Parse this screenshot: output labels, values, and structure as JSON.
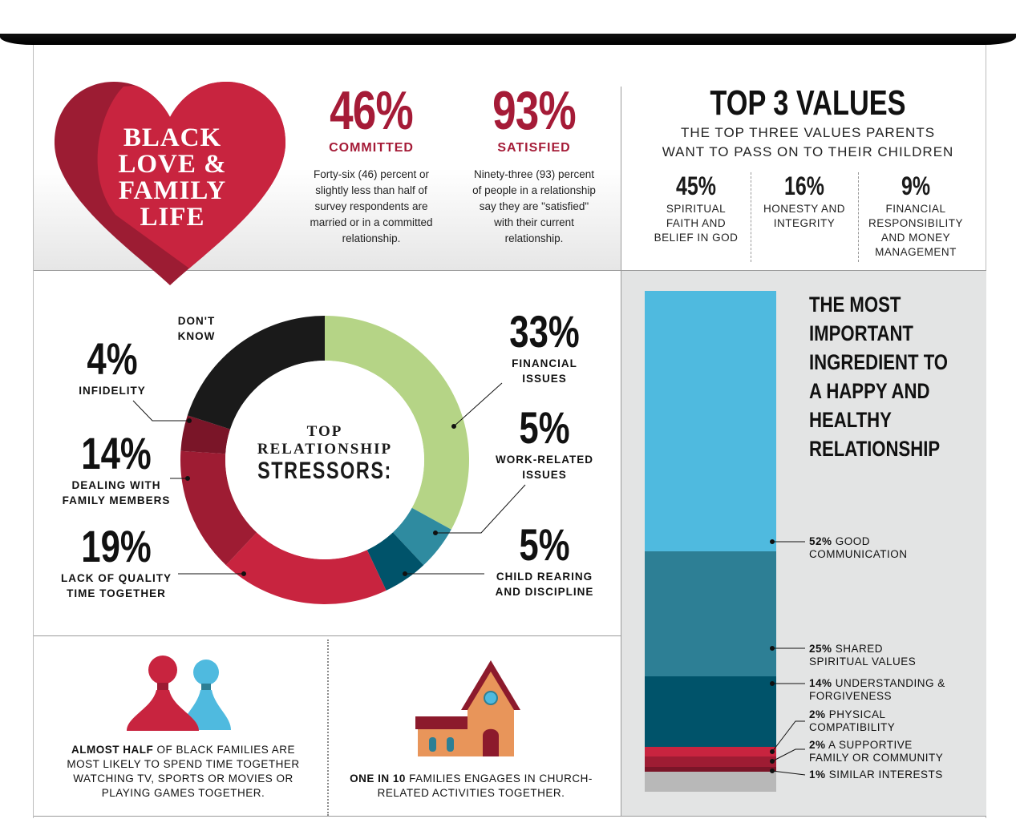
{
  "heart": {
    "title_lines": [
      "BLACK",
      "LOVE &",
      "FAMILY",
      "LIFE"
    ],
    "colors": {
      "light": "#c8243f",
      "dark": "#9c1c33"
    }
  },
  "stats": [
    {
      "value": "46%",
      "label": "COMMITTED",
      "text_lines": [
        "Forty-six (46) percent or",
        "slightly less than half of",
        "survey respondents are",
        "married or in a committed",
        "relationship."
      ]
    },
    {
      "value": "93%",
      "label": "SATISFIED",
      "text_lines": [
        "Ninety-three (93) percent",
        "of people in a relationship",
        "say they are \"satisfied\"",
        "with their current",
        "relationship."
      ]
    }
  ],
  "top_values": {
    "title": "TOP 3 VALUES",
    "subtitle_lines": [
      "THE TOP THREE VALUES PARENTS",
      "WANT TO PASS ON TO THEIR CHILDREN"
    ],
    "items": [
      {
        "pct": "45%",
        "label_lines": [
          "SPIRITUAL",
          "FAITH AND",
          "BELIEF IN GOD"
        ]
      },
      {
        "pct": "16%",
        "label_lines": [
          "HONESTY AND",
          "INTEGRITY"
        ]
      },
      {
        "pct": "9%",
        "label_lines": [
          "FINANCIAL",
          "RESPONSIBILITY",
          "AND MONEY",
          "MANAGEMENT"
        ]
      }
    ]
  },
  "stressors": {
    "center_lines": [
      "TOP",
      "RELATIONSHIP",
      "STRESSORS:"
    ],
    "labels": {
      "dont_know": [
        "DON'T",
        "KNOW"
      ],
      "infidelity": {
        "pct": "4%",
        "lines": [
          "INFIDELITY"
        ]
      },
      "family": {
        "pct": "14%",
        "lines": [
          "DEALING WITH",
          "FAMILY MEMBERS"
        ]
      },
      "time": {
        "pct": "19%",
        "lines": [
          "LACK OF QUALITY",
          "TIME TOGETHER"
        ]
      },
      "financial": {
        "pct": "33%",
        "lines": [
          "FINANCIAL",
          "ISSUES"
        ]
      },
      "work": {
        "pct": "5%",
        "lines": [
          "WORK-RELATED",
          "ISSUES"
        ]
      },
      "child": {
        "pct": "5%",
        "lines": [
          "CHILD REARING",
          "AND DISCIPLINE"
        ]
      }
    }
  },
  "chart_data": [
    {
      "type": "pie",
      "title": "TOP RELATIONSHIP STRESSORS:",
      "series": [
        {
          "name": "FINANCIAL ISSUES",
          "value": 33,
          "color": "#b5d486"
        },
        {
          "name": "WORK-RELATED ISSUES",
          "value": 5,
          "color": "#2f8ba0"
        },
        {
          "name": "CHILD REARING AND DISCIPLINE",
          "value": 5,
          "color": "#00536a"
        },
        {
          "name": "LACK OF QUALITY TIME TOGETHER",
          "value": 19,
          "color": "#c8243f"
        },
        {
          "name": "DEALING WITH FAMILY MEMBERS",
          "value": 14,
          "color": "#9e1c33"
        },
        {
          "name": "INFIDELITY",
          "value": 4,
          "color": "#7a1528"
        },
        {
          "name": "DON'T KNOW",
          "value": 20,
          "color": "#1a1a1a"
        }
      ]
    },
    {
      "type": "bar",
      "title": "THE MOST IMPORTANT INGREDIENT TO A HAPPY AND HEALTHY RELATIONSHIP",
      "series": [
        {
          "pct": "52%",
          "name": "GOOD COMMUNICATION",
          "value": 52,
          "color": "#4fbadf"
        },
        {
          "pct": "25%",
          "name": "SHARED SPIRITUAL VALUES",
          "value": 25,
          "color": "#2d7f95"
        },
        {
          "pct": "14%",
          "name": "UNDERSTANDING & FORGIVENESS",
          "value": 14,
          "color": "#00536a"
        },
        {
          "pct": "2%",
          "name": "PHYSICAL COMPATIBILITY",
          "value": 2,
          "color": "#c8243f"
        },
        {
          "pct": "2%",
          "name": "A SUPPORTIVE FAMILY OR COMMUNITY",
          "value": 2,
          "color": "#9e1c33"
        },
        {
          "pct": "1%",
          "name": "SIMILAR INTERESTS",
          "value": 1,
          "color": "#7a1528"
        },
        {
          "value": 4,
          "color": "#b8b8b8"
        }
      ]
    }
  ],
  "ingredient": {
    "title_lines": [
      "THE MOST",
      "IMPORTANT",
      "INGREDIENT TO",
      "A HAPPY AND",
      "HEALTHY",
      "RELATIONSHIP"
    ],
    "labels": [
      {
        "pct": "52%",
        "lines": [
          "GOOD",
          "COMMUNICATION"
        ]
      },
      {
        "pct": "25%",
        "lines": [
          "SHARED",
          "SPIRITUAL VALUES"
        ]
      },
      {
        "pct": "14%",
        "lines": [
          "UNDERSTANDING &",
          "FORGIVENESS"
        ]
      },
      {
        "pct": "2%",
        "lines": [
          "PHYSICAL",
          "COMPATIBILITY"
        ]
      },
      {
        "pct": "2%",
        "lines": [
          "A SUPPORTIVE",
          "FAMILY OR COMMUNITY"
        ]
      },
      {
        "pct": "1%",
        "lines": [
          "SIMILAR INTERESTS"
        ]
      }
    ]
  },
  "bottom": {
    "games": {
      "bold": "ALMOST HALF",
      "lines": [
        " OF BLACK FAMILIES ARE",
        "MOST LIKELY TO SPEND TIME TOGETHER",
        "WATCHING TV, SPORTS OR MOVIES OR",
        "PLAYING GAMES TOGETHER."
      ]
    },
    "church": {
      "bold": "ONE IN 10",
      "lines": [
        " FAMILIES ENGAGES IN CHURCH-",
        "RELATED ACTIVITIES TOGETHER."
      ]
    }
  }
}
